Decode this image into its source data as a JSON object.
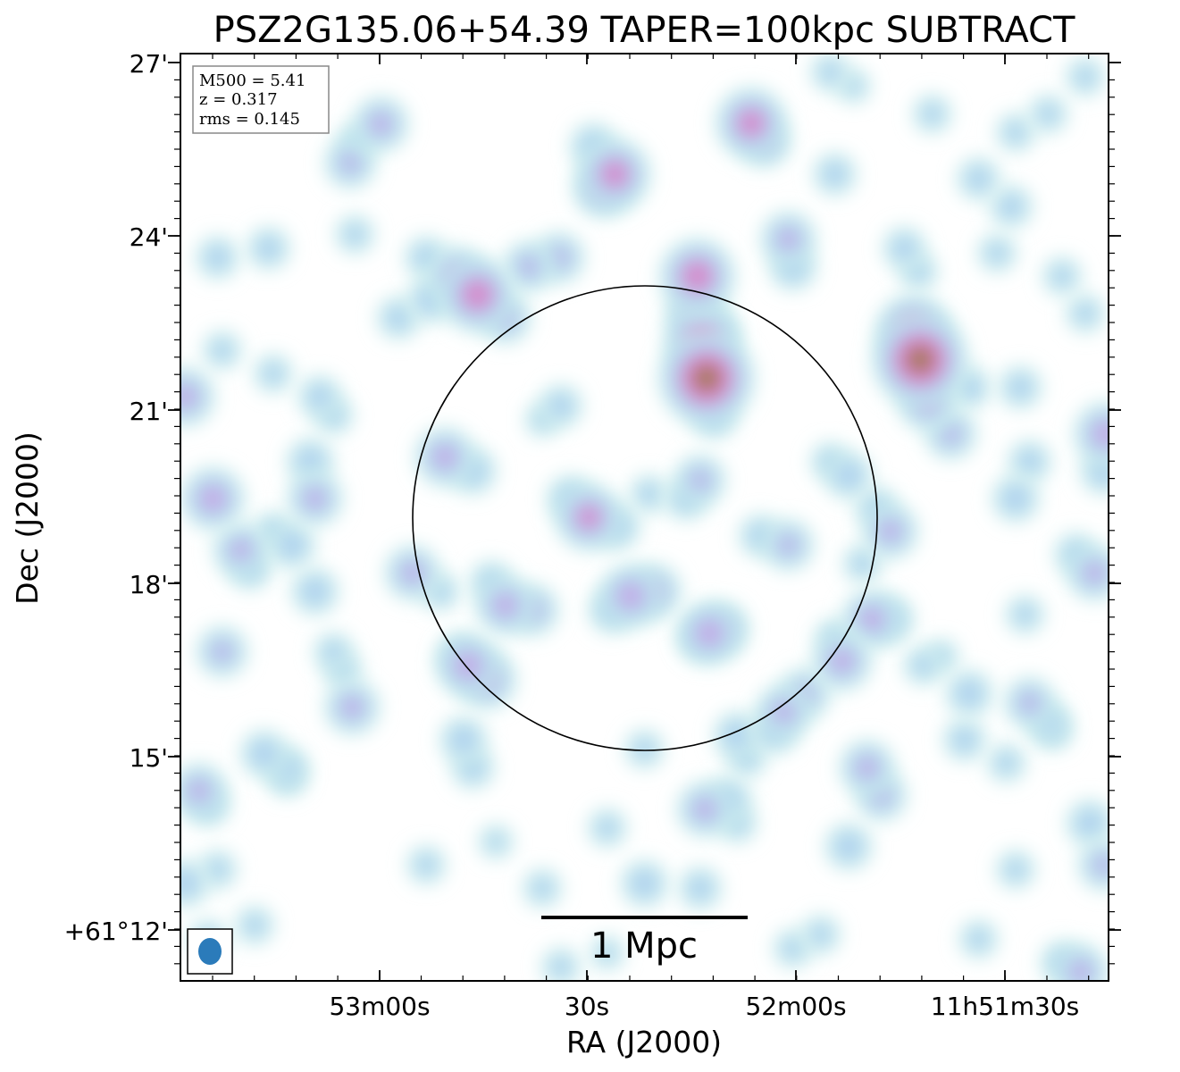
{
  "chart_data": {
    "type": "heatmap",
    "title": "PSZ2G135.06+54.39 TAPER=100kpc SUBTRACT",
    "xlabel": "RA (J2000)",
    "ylabel": "Dec (J2000)",
    "x_ticks": [
      "53m00s",
      "30s",
      "52m00s",
      "11h51m30s"
    ],
    "y_ticks": [
      "27'",
      "24'",
      "21'",
      "18'",
      "15'",
      "+61°12'"
    ],
    "info_box": [
      "M500 = 5.41",
      "z = 0.317",
      "rms = 0.145"
    ],
    "scalebar_label": "1 Mpc",
    "colormap": [
      "#c9ecec",
      "#aed0f0",
      "#c8a8e6",
      "#d982c2",
      "#d5608a",
      "#8a8a40",
      "#3a9a30"
    ],
    "colors": {
      "circle": "#000000",
      "beam": "#2b7bba",
      "frame": "#000000"
    },
    "emission": [
      [
        0.216,
        0.924,
        0.5
      ],
      [
        0.183,
        0.882,
        0.45
      ],
      [
        0.19,
        0.905,
        0.3
      ],
      [
        0.32,
        0.74,
        0.75
      ],
      [
        0.298,
        0.76,
        0.55
      ],
      [
        0.27,
        0.735,
        0.4
      ],
      [
        0.35,
        0.715,
        0.45
      ],
      [
        0.455,
        0.855,
        0.55
      ],
      [
        0.468,
        0.87,
        0.7
      ],
      [
        0.445,
        0.9,
        0.4
      ],
      [
        0.615,
        0.925,
        0.7
      ],
      [
        0.63,
        0.905,
        0.45
      ],
      [
        0.567,
        0.65,
        1.0
      ],
      [
        0.562,
        0.69,
        0.75
      ],
      [
        0.555,
        0.72,
        0.55
      ],
      [
        0.557,
        0.76,
        0.75
      ],
      [
        0.575,
        0.61,
        0.4
      ],
      [
        0.797,
        0.67,
        1.0
      ],
      [
        0.79,
        0.7,
        0.75
      ],
      [
        0.805,
        0.625,
        0.55
      ],
      [
        0.83,
        0.59,
        0.45
      ],
      [
        0.85,
        0.64,
        0.35
      ],
      [
        0.408,
        0.78,
        0.45
      ],
      [
        0.375,
        0.77,
        0.45
      ],
      [
        0.655,
        0.8,
        0.5
      ],
      [
        0.66,
        0.77,
        0.4
      ],
      [
        0.005,
        0.63,
        0.55
      ],
      [
        0.997,
        0.59,
        0.6
      ],
      [
        0.995,
        0.55,
        0.4
      ],
      [
        0.285,
        0.565,
        0.55
      ],
      [
        0.315,
        0.55,
        0.4
      ],
      [
        0.44,
        0.5,
        0.65
      ],
      [
        0.47,
        0.49,
        0.4
      ],
      [
        0.42,
        0.52,
        0.4
      ],
      [
        0.56,
        0.54,
        0.45
      ],
      [
        0.545,
        0.52,
        0.35
      ],
      [
        0.035,
        0.52,
        0.6
      ],
      [
        0.145,
        0.52,
        0.5
      ],
      [
        0.14,
        0.56,
        0.4
      ],
      [
        0.25,
        0.44,
        0.5
      ],
      [
        0.28,
        0.42,
        0.3
      ],
      [
        0.35,
        0.405,
        0.55
      ],
      [
        0.335,
        0.43,
        0.35
      ],
      [
        0.485,
        0.415,
        0.6
      ],
      [
        0.51,
        0.42,
        0.5
      ],
      [
        0.465,
        0.4,
        0.4
      ],
      [
        0.315,
        0.23,
        0.35
      ],
      [
        0.6,
        0.265,
        0.4
      ],
      [
        0.61,
        0.24,
        0.3
      ],
      [
        0.673,
        0.31,
        0.45
      ],
      [
        0.655,
        0.47,
        0.45
      ],
      [
        0.625,
        0.48,
        0.35
      ],
      [
        0.72,
        0.545,
        0.4
      ],
      [
        0.7,
        0.56,
        0.3
      ],
      [
        0.765,
        0.485,
        0.5
      ],
      [
        0.75,
        0.51,
        0.35
      ],
      [
        0.735,
        0.45,
        0.3
      ],
      [
        0.745,
        0.39,
        0.55
      ],
      [
        0.765,
        0.39,
        0.4
      ],
      [
        0.713,
        0.345,
        0.55
      ],
      [
        0.705,
        0.37,
        0.3
      ],
      [
        0.57,
        0.375,
        0.6
      ],
      [
        0.585,
        0.38,
        0.45
      ],
      [
        0.56,
        0.37,
        0.35
      ],
      [
        0.31,
        0.34,
        0.6
      ],
      [
        0.33,
        0.325,
        0.55
      ],
      [
        0.3,
        0.35,
        0.35
      ],
      [
        0.65,
        0.29,
        0.5
      ],
      [
        0.64,
        0.27,
        0.4
      ],
      [
        0.38,
        0.4,
        0.45
      ],
      [
        0.045,
        0.355,
        0.45
      ],
      [
        0.065,
        0.465,
        0.5
      ],
      [
        0.075,
        0.445,
        0.35
      ],
      [
        0.09,
        0.245,
        0.4
      ],
      [
        0.115,
        0.23,
        0.35
      ],
      [
        0.185,
        0.295,
        0.5
      ],
      [
        0.175,
        0.335,
        0.3
      ],
      [
        0.165,
        0.355,
        0.3
      ],
      [
        0.145,
        0.42,
        0.4
      ],
      [
        0.235,
        0.715,
        0.35
      ],
      [
        0.12,
        0.47,
        0.4
      ],
      [
        0.1,
        0.485,
        0.3
      ],
      [
        0.04,
        0.78,
        0.35
      ],
      [
        0.095,
        0.79,
        0.35
      ],
      [
        0.188,
        0.805,
        0.3
      ],
      [
        0.115,
        0.22,
        0.3
      ],
      [
        0.02,
        0.205,
        0.5
      ],
      [
        0.03,
        0.19,
        0.35
      ],
      [
        0.005,
        0.105,
        0.4
      ],
      [
        0.04,
        0.12,
        0.3
      ],
      [
        0.305,
        0.26,
        0.4
      ],
      [
        0.565,
        0.185,
        0.5
      ],
      [
        0.59,
        0.195,
        0.4
      ],
      [
        0.6,
        0.17,
        0.3
      ],
      [
        0.5,
        0.105,
        0.4
      ],
      [
        0.56,
        0.1,
        0.35
      ],
      [
        0.72,
        0.145,
        0.4
      ],
      [
        0.74,
        0.23,
        0.5
      ],
      [
        0.755,
        0.2,
        0.45
      ],
      [
        0.85,
        0.31,
        0.4
      ],
      [
        0.845,
        0.26,
        0.35
      ],
      [
        0.915,
        0.3,
        0.45
      ],
      [
        0.935,
        0.28,
        0.35
      ],
      [
        0.89,
        0.235,
        0.3
      ],
      [
        0.98,
        0.17,
        0.4
      ],
      [
        0.995,
        0.125,
        0.45
      ],
      [
        0.97,
        0.01,
        0.5
      ],
      [
        0.95,
        0.02,
        0.35
      ],
      [
        0.9,
        0.12,
        0.3
      ],
      [
        0.985,
        0.44,
        0.5
      ],
      [
        0.965,
        0.46,
        0.35
      ],
      [
        0.9,
        0.52,
        0.4
      ],
      [
        0.915,
        0.56,
        0.35
      ],
      [
        0.905,
        0.64,
        0.35
      ],
      [
        0.895,
        0.835,
        0.35
      ],
      [
        0.86,
        0.865,
        0.35
      ],
      [
        0.88,
        0.785,
        0.3
      ],
      [
        0.78,
        0.79,
        0.35
      ],
      [
        0.795,
        0.765,
        0.3
      ],
      [
        0.81,
        0.935,
        0.3
      ],
      [
        0.9,
        0.915,
        0.3
      ],
      [
        0.975,
        0.975,
        0.3
      ],
      [
        0.7,
        0.98,
        0.3
      ],
      [
        0.725,
        0.965,
        0.25
      ],
      [
        0.41,
        0.62,
        0.35
      ],
      [
        0.39,
        0.605,
        0.25
      ],
      [
        0.15,
        0.63,
        0.35
      ],
      [
        0.165,
        0.61,
        0.3
      ],
      [
        0.1,
        0.655,
        0.3
      ],
      [
        0.045,
        0.68,
        0.3
      ],
      [
        0.265,
        0.78,
        0.35
      ],
      [
        0.03,
        0.045,
        0.3
      ],
      [
        0.08,
        0.06,
        0.3
      ],
      [
        0.41,
        0.015,
        0.3
      ],
      [
        0.46,
        0.03,
        0.25
      ],
      [
        0.66,
        0.035,
        0.3
      ],
      [
        0.69,
        0.05,
        0.3
      ],
      [
        0.86,
        0.045,
        0.3
      ],
      [
        0.91,
        0.395,
        0.3
      ],
      [
        0.8,
        0.34,
        0.3
      ],
      [
        0.82,
        0.35,
        0.25
      ],
      [
        0.5,
        0.25,
        0.3
      ],
      [
        0.46,
        0.165,
        0.3
      ],
      [
        0.39,
        0.1,
        0.3
      ],
      [
        0.34,
        0.15,
        0.25
      ],
      [
        0.265,
        0.125,
        0.3
      ],
      [
        0.505,
        0.525,
        0.3
      ],
      [
        0.58,
        0.7,
        0.3
      ],
      [
        0.94,
        0.27,
        0.3
      ],
      [
        0.975,
        0.72,
        0.3
      ],
      [
        0.95,
        0.76,
        0.3
      ],
      [
        0.935,
        0.935,
        0.3
      ],
      [
        0.705,
        0.87,
        0.35
      ]
    ]
  }
}
